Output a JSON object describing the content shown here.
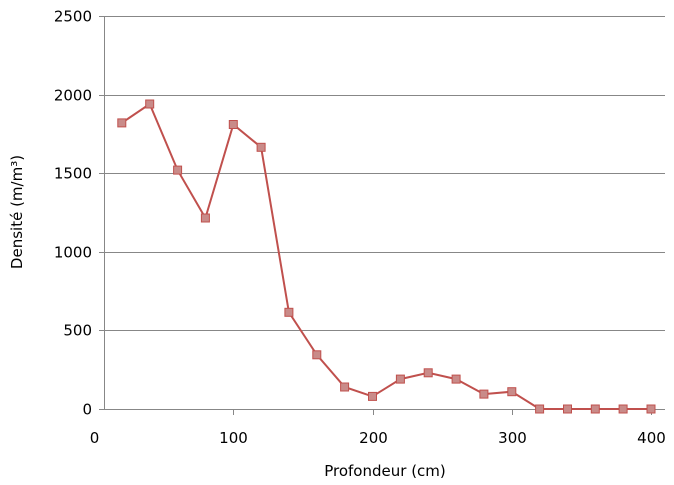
{
  "chart_data": {
    "type": "scatter",
    "title": "",
    "xlabel": "Profondeur (cm)",
    "ylabel": "Densité (m/m³)",
    "xlim": [
      0,
      400
    ],
    "ylim": [
      0,
      2500
    ],
    "xticks": [
      0,
      100,
      200,
      300,
      400
    ],
    "yticks": [
      0,
      500,
      1000,
      1500,
      2000,
      2500
    ],
    "grid": {
      "horizontal": true,
      "vertical": false
    },
    "legend": "none",
    "series": [
      {
        "color": "#c0504d",
        "marker_color": "#c0504d",
        "points": [
          {
            "x": 20,
            "y": 1820
          },
          {
            "x": 40,
            "y": 1940
          },
          {
            "x": 60,
            "y": 1520
          },
          {
            "x": 80,
            "y": 1215
          },
          {
            "x": 100,
            "y": 1810
          },
          {
            "x": 120,
            "y": 1665
          },
          {
            "x": 140,
            "y": 615
          },
          {
            "x": 160,
            "y": 345
          },
          {
            "x": 180,
            "y": 140
          },
          {
            "x": 200,
            "y": 80
          },
          {
            "x": 220,
            "y": 190
          },
          {
            "x": 240,
            "y": 230
          },
          {
            "x": 260,
            "y": 190
          },
          {
            "x": 280,
            "y": 95
          },
          {
            "x": 300,
            "y": 110
          },
          {
            "x": 320,
            "y": 0
          },
          {
            "x": 340,
            "y": 0
          },
          {
            "x": 360,
            "y": 0
          },
          {
            "x": 380,
            "y": 0
          },
          {
            "x": 400,
            "y": 0
          }
        ]
      }
    ]
  }
}
